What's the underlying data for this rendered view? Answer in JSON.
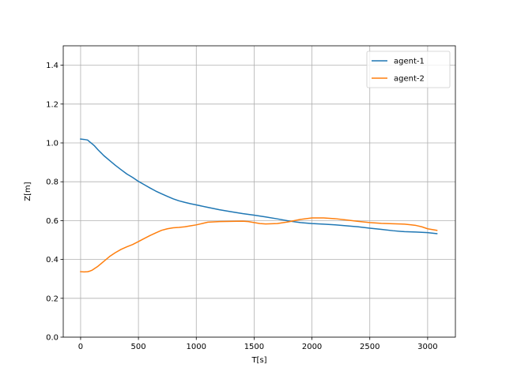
{
  "chart_data": {
    "type": "line",
    "title": "",
    "xlabel": "T[s]",
    "ylabel": "Z[m]",
    "xlim": [
      -150,
      3240
    ],
    "ylim": [
      0.0,
      1.5
    ],
    "xticks": [
      0,
      500,
      1000,
      1500,
      2000,
      2500,
      3000
    ],
    "xtick_labels": [
      "0",
      "500",
      "1000",
      "1500",
      "2000",
      "2500",
      "3000"
    ],
    "yticks": [
      0.0,
      0.2,
      0.4,
      0.6,
      0.8,
      1.0,
      1.2,
      1.4
    ],
    "ytick_labels": [
      "0.0",
      "0.2",
      "0.4",
      "0.6",
      "0.8",
      "1.0",
      "1.2",
      "1.4"
    ],
    "grid": true,
    "legend_position": "top-right",
    "series": [
      {
        "name": "agent-1",
        "color": "#1f77b4",
        "x": [
          0,
          30,
          60,
          80,
          100,
          120,
          150,
          200,
          250,
          300,
          350,
          400,
          450,
          500,
          550,
          600,
          650,
          700,
          750,
          800,
          850,
          900,
          950,
          1000,
          1100,
          1200,
          1300,
          1400,
          1500,
          1600,
          1700,
          1800,
          1900,
          2000,
          2100,
          2200,
          2300,
          2400,
          2500,
          2600,
          2700,
          2800,
          2900,
          3000,
          3080
        ],
        "values": [
          1.02,
          1.018,
          1.015,
          1.005,
          0.995,
          0.985,
          0.965,
          0.935,
          0.91,
          0.885,
          0.862,
          0.84,
          0.822,
          0.802,
          0.785,
          0.768,
          0.752,
          0.738,
          0.725,
          0.712,
          0.702,
          0.694,
          0.687,
          0.681,
          0.668,
          0.656,
          0.646,
          0.636,
          0.628,
          0.619,
          0.609,
          0.598,
          0.59,
          0.585,
          0.582,
          0.578,
          0.573,
          0.568,
          0.561,
          0.555,
          0.548,
          0.543,
          0.541,
          0.538,
          0.533
        ]
      },
      {
        "name": "agent-2",
        "color": "#ff7f0e",
        "x": [
          0,
          30,
          60,
          80,
          100,
          150,
          200,
          250,
          300,
          350,
          400,
          450,
          500,
          550,
          600,
          650,
          700,
          750,
          800,
          850,
          900,
          950,
          1000,
          1050,
          1100,
          1200,
          1300,
          1400,
          1450,
          1500,
          1550,
          1600,
          1700,
          1800,
          1900,
          2000,
          2100,
          2200,
          2300,
          2400,
          2500,
          2600,
          2700,
          2800,
          2850,
          2900,
          2950,
          3000,
          3080
        ],
        "values": [
          0.337,
          0.336,
          0.337,
          0.34,
          0.345,
          0.365,
          0.39,
          0.415,
          0.435,
          0.452,
          0.465,
          0.477,
          0.492,
          0.508,
          0.523,
          0.537,
          0.55,
          0.558,
          0.563,
          0.565,
          0.568,
          0.573,
          0.578,
          0.585,
          0.592,
          0.595,
          0.596,
          0.597,
          0.595,
          0.59,
          0.585,
          0.583,
          0.585,
          0.594,
          0.606,
          0.614,
          0.614,
          0.61,
          0.603,
          0.596,
          0.59,
          0.586,
          0.584,
          0.582,
          0.579,
          0.575,
          0.568,
          0.558,
          0.55
        ]
      }
    ]
  }
}
